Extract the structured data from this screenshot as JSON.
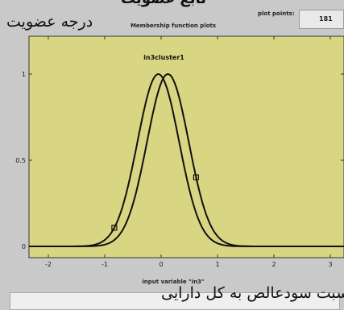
{
  "top_caption": "تابع عضویت",
  "panel": {
    "title": "Membership function plots",
    "plot_points_label": "plot points:",
    "plot_points_value": "181"
  },
  "axis": {
    "y_label_fa": "درجه عضویت",
    "x_label": "input variable \"in3\"",
    "x_label_fa": "نسبت سودعالص به کل دارایی"
  },
  "chart_data": {
    "type": "line",
    "xlim": [
      -2.5,
      3.5
    ],
    "ylim": [
      0,
      1
    ],
    "xticks": [
      -2,
      -1,
      0,
      1,
      2,
      3
    ],
    "yticks": [
      0,
      0.5,
      1
    ],
    "x_tick_labels": [
      "-2",
      "-1",
      "0",
      "1",
      "2",
      "3"
    ],
    "y_tick_labels": [
      "0",
      "0.5",
      "1"
    ],
    "curve_label": "in3cluster1",
    "grid": false,
    "background": "#d8d583",
    "series": [
      {
        "mf": "gaussian",
        "center": -0.05,
        "sigma": 0.37
      },
      {
        "mf": "gaussian",
        "center": 0.12,
        "sigma": 0.37
      }
    ]
  }
}
